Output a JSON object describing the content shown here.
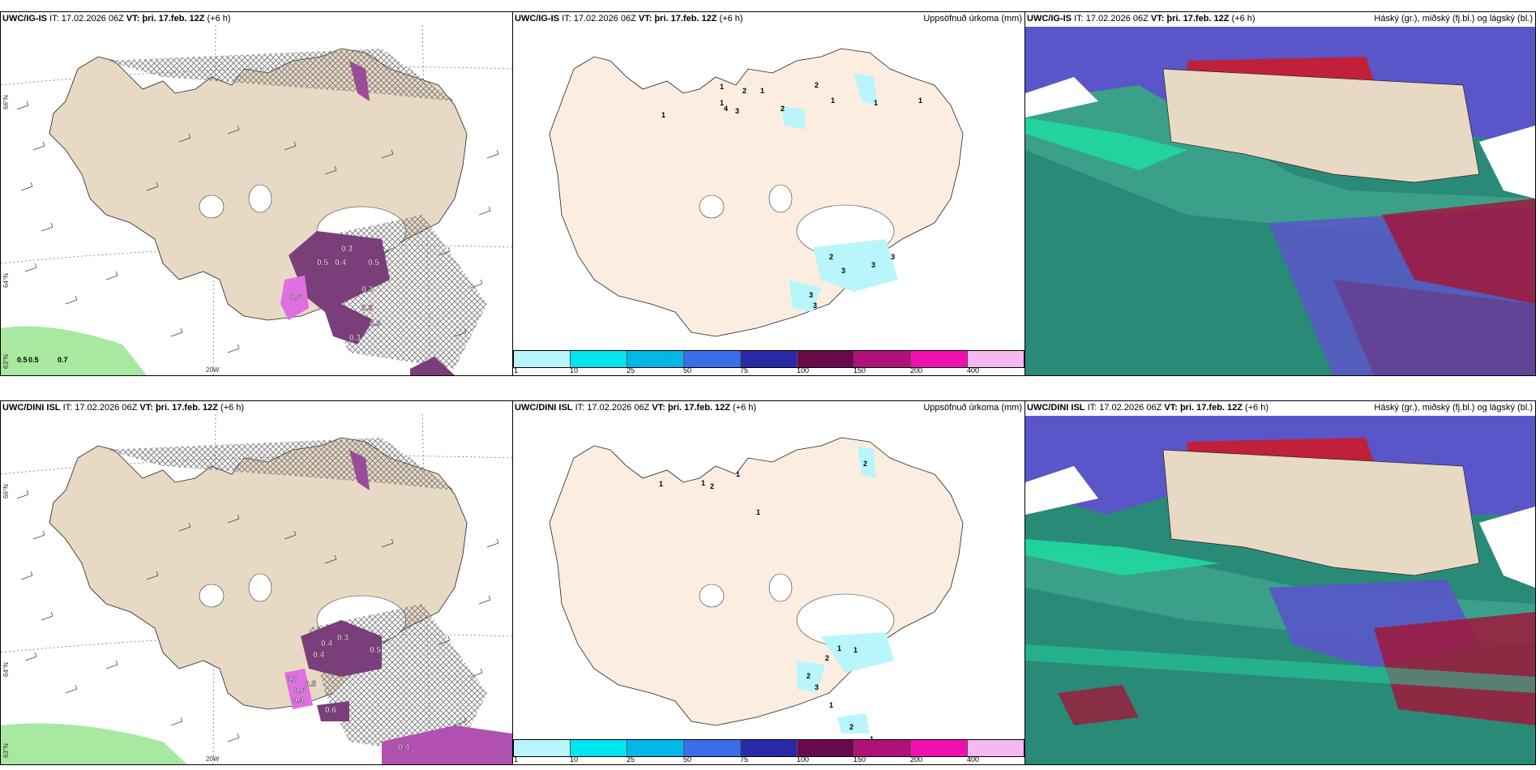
{
  "panels": {
    "top_left": {
      "model": "UWC/IG-IS",
      "it_label": "IT:",
      "it_value": "17.02.2026 06Z",
      "vt_label": "VT:",
      "vt_value": "þri. 17.feb. 12Z",
      "lead": "(+6 h)"
    },
    "top_mid": {
      "model": "UWC/IG-IS",
      "it_label": "IT:",
      "it_value": "17.02.2026 06Z",
      "vt_label": "VT:",
      "vt_value": "þri. 17.feb. 12Z",
      "lead": "(+6 h)",
      "right_title": "Uppsöfnuð úrkoma (mm)"
    },
    "top_right": {
      "model": "UWC/IG-IS",
      "it_label": "IT:",
      "it_value": "17.02.2026 06Z",
      "vt_label": "VT:",
      "vt_value": "þri. 17.feb. 12Z",
      "lead": "(+6 h)",
      "right_title": "Háský (gr.), miðský (fj.bl.) og lágský (bl.)"
    },
    "bottom_left": {
      "model": "UWC/DINI ISL",
      "it_label": "IT:",
      "it_value": "17.02.2026 06Z",
      "vt_label": "VT:",
      "vt_value": "þri. 17.feb. 12Z",
      "lead": "(+6 h)"
    },
    "bottom_mid": {
      "model": "UWC/DINI ISL",
      "it_label": "IT:",
      "it_value": "17.02.2026 06Z",
      "vt_label": "VT:",
      "vt_value": "þri. 17.feb. 12Z",
      "lead": "(+6 h)",
      "right_title": "Uppsöfnuð úrkoma (mm)"
    },
    "bottom_right": {
      "model": "UWC/DINI ISL",
      "it_label": "IT:",
      "it_value": "17.02.2026 06Z",
      "vt_label": "VT:",
      "vt_value": "þri. 17.feb. 12Z",
      "lead": "(+6 h)",
      "right_title": "Háský (gr.), miðský (fj.bl.) og lágský (bl.)"
    }
  },
  "axes": {
    "lat_66": "66°N",
    "lat_64": "64°N",
    "lat_63": "63°N",
    "lon_20w": "20W"
  },
  "colorbar": {
    "ticks": [
      "1",
      "10",
      "25",
      "50",
      "75",
      "100",
      "150",
      "200",
      "400"
    ],
    "colors": [
      "#b8f6fb",
      "#00e6f0",
      "#00b8e8",
      "#3a6ee8",
      "#2a2aa8",
      "#6a0a4a",
      "#b0107a",
      "#f010b0",
      "#f6b8f0"
    ]
  },
  "precip_values": {
    "top_left": [
      "0.5",
      "0.5",
      "0.7",
      "0.3",
      "0.4",
      "0.5",
      "0.3",
      "0.3",
      "0.3",
      "0.5",
      "0.6",
      "0.3"
    ],
    "bottom_left": [
      "0.3",
      "0.4",
      "0.4",
      "0.7",
      "0.6",
      "0.5",
      "0.4",
      "0.6",
      "0.4",
      "0.5"
    ],
    "top_mid": [
      "1",
      "1",
      "4",
      "3",
      "2",
      "1",
      "2",
      "2",
      "1",
      "1",
      "1",
      "1",
      "2",
      "3",
      "3",
      "3",
      "3",
      "3"
    ],
    "bottom_mid": [
      "1",
      "1",
      "2",
      "1",
      "2",
      "1",
      "1",
      "1",
      "2",
      "2",
      "3",
      "1",
      "2",
      "1"
    ]
  },
  "colors": {
    "land": "#e8d9c4",
    "land_mid": "#fbeee1",
    "hatch": "#777777",
    "precip_purple": "#7a3f7a",
    "precip_pink": "#e070e0",
    "green": "#a8e8a0",
    "cloud_high": "#c0203a",
    "cloud_mid": "#3a38c0",
    "cloud_low": "#2a9a80"
  }
}
